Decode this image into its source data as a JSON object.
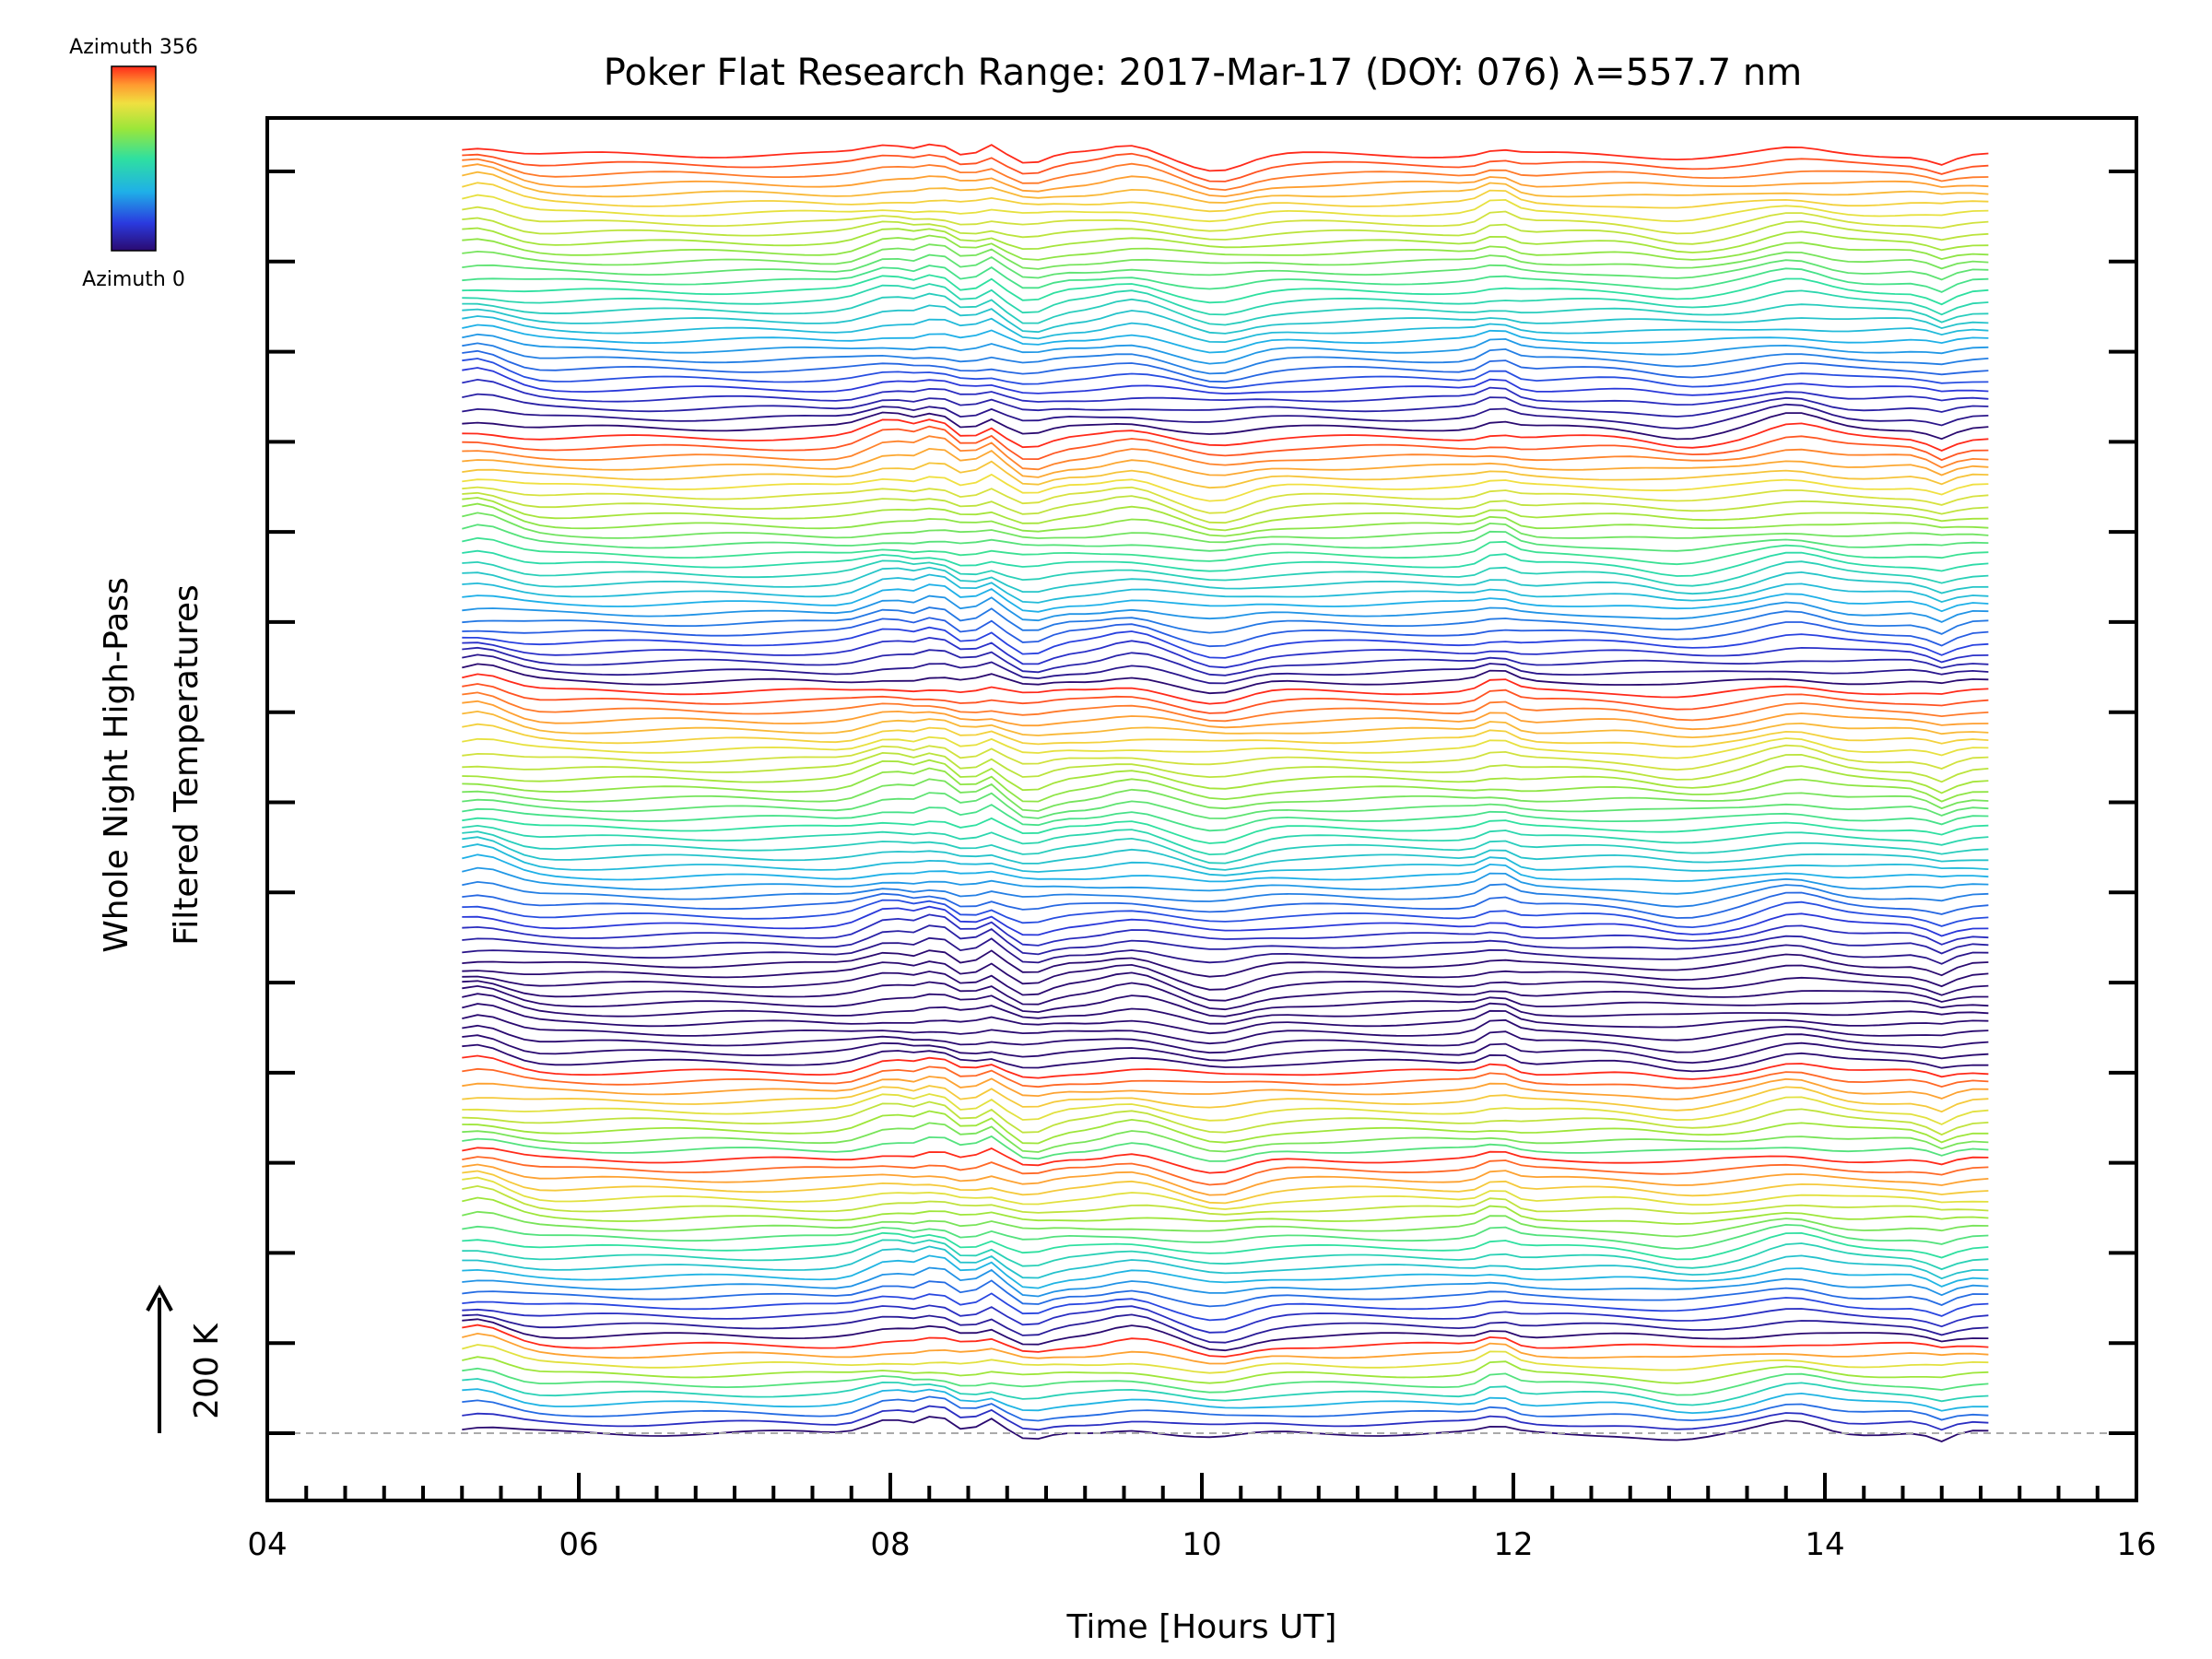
{
  "chart_data": {
    "type": "line",
    "title": "Poker Flat Research Range: 2017-Mar-17 (DOY: 076) λ=557.7 nm",
    "xlabel": "Time [Hours UT]",
    "ylabel_line1": "Whole Night High-Pass",
    "ylabel_line2": "Filtered Temperatures",
    "xlim": [
      4,
      16
    ],
    "x_tick_labels": [
      "04",
      "06",
      "08",
      "10",
      "12",
      "14",
      "16"
    ],
    "x_major_ticks": [
      4,
      6,
      8,
      10,
      12,
      14,
      16
    ],
    "x_minor_step": 0.25,
    "y_major_tick_count": 15,
    "scale_bar": {
      "label": "200 K",
      "value_kelvin": 200
    },
    "colorbar": {
      "top_label": "Azimuth 356",
      "bottom_label": "Azimuth 0",
      "azimuth_range": [
        0,
        356
      ],
      "colormap": "rainbow"
    },
    "trace_time_range": [
      5.25,
      15.05
    ],
    "trace_count": 132,
    "baseline_dashed": true,
    "note": "Stacked high-pass filtered temperature traces (one per azimuth), offset vertically; scale bar indicates 200 K."
  }
}
